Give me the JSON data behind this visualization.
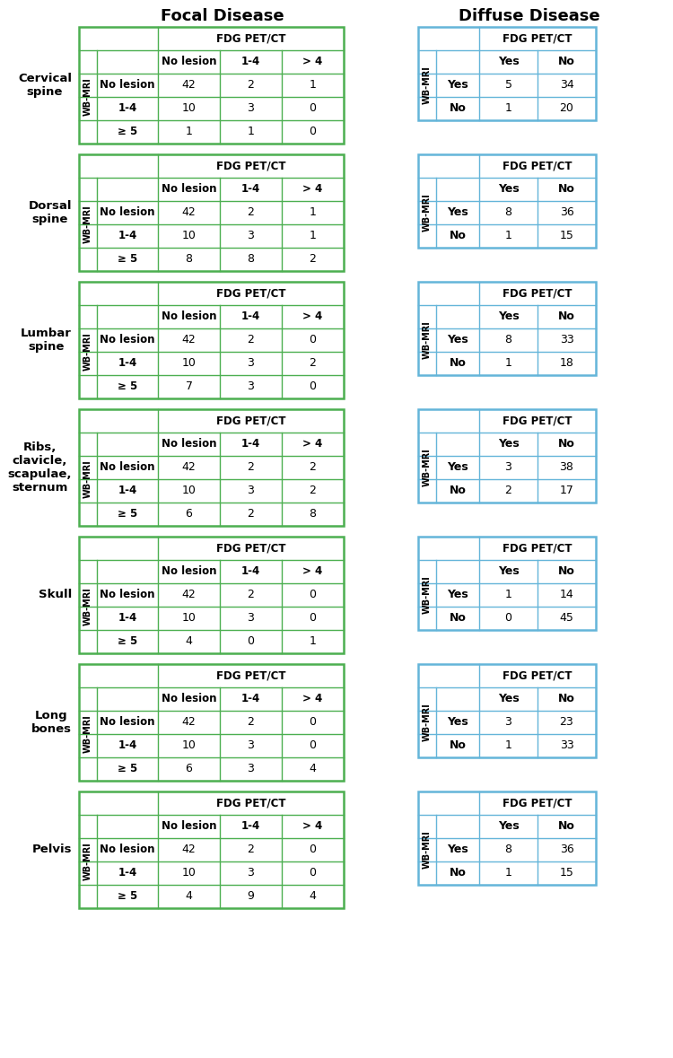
{
  "title_focal": "Focal Disease",
  "title_diffuse": "Diffuse Disease",
  "regions": [
    {
      "name": "Cervical\nspine",
      "focal": {
        "header": "FDG PET/CT",
        "col_labels": [
          "No lesion",
          "1-4",
          "> 4"
        ],
        "row_labels": [
          "No lesion",
          "1-4",
          "≥ 5"
        ],
        "data": [
          [
            42,
            2,
            1
          ],
          [
            10,
            3,
            0
          ],
          [
            1,
            1,
            0
          ]
        ]
      },
      "diffuse": {
        "header": "FDG PET/CT",
        "col_labels": [
          "Yes",
          "No"
        ],
        "row_labels": [
          "Yes",
          "No"
        ],
        "data": [
          [
            5,
            34
          ],
          [
            1,
            20
          ]
        ]
      }
    },
    {
      "name": "Dorsal\nspine",
      "focal": {
        "header": "FDG PET/CT",
        "col_labels": [
          "No lesion",
          "1-4",
          "> 4"
        ],
        "row_labels": [
          "No lesion",
          "1-4",
          "≥ 5"
        ],
        "data": [
          [
            42,
            2,
            1
          ],
          [
            10,
            3,
            1
          ],
          [
            8,
            8,
            2
          ]
        ]
      },
      "diffuse": {
        "header": "FDG PET/CT",
        "col_labels": [
          "Yes",
          "No"
        ],
        "row_labels": [
          "Yes",
          "No"
        ],
        "data": [
          [
            8,
            36
          ],
          [
            1,
            15
          ]
        ]
      }
    },
    {
      "name": "Lumbar\nspine",
      "focal": {
        "header": "FDG PET/CT",
        "col_labels": [
          "No lesion",
          "1-4",
          "> 4"
        ],
        "row_labels": [
          "No lesion",
          "1-4",
          "≥ 5"
        ],
        "data": [
          [
            42,
            2,
            0
          ],
          [
            10,
            3,
            2
          ],
          [
            7,
            3,
            0
          ]
        ]
      },
      "diffuse": {
        "header": "FDG PET/CT",
        "col_labels": [
          "Yes",
          "No"
        ],
        "row_labels": [
          "Yes",
          "No"
        ],
        "data": [
          [
            8,
            33
          ],
          [
            1,
            18
          ]
        ]
      }
    },
    {
      "name": "Ribs,\nclavicle,\nscapulae,\nsternum",
      "focal": {
        "header": "FDG PET/CT",
        "col_labels": [
          "No lesion",
          "1-4",
          "> 4"
        ],
        "row_labels": [
          "No lesion",
          "1-4",
          "≥ 5"
        ],
        "data": [
          [
            42,
            2,
            2
          ],
          [
            10,
            3,
            2
          ],
          [
            6,
            2,
            8
          ]
        ]
      },
      "diffuse": {
        "header": "FDG PET/CT",
        "col_labels": [
          "Yes",
          "No"
        ],
        "row_labels": [
          "Yes",
          "No"
        ],
        "data": [
          [
            3,
            38
          ],
          [
            2,
            17
          ]
        ]
      }
    },
    {
      "name": "Skull",
      "focal": {
        "header": "FDG PET/CT",
        "col_labels": [
          "No lesion",
          "1-4",
          "> 4"
        ],
        "row_labels": [
          "No lesion",
          "1-4",
          "≥ 5"
        ],
        "data": [
          [
            42,
            2,
            0
          ],
          [
            10,
            3,
            0
          ],
          [
            4,
            0,
            1
          ]
        ]
      },
      "diffuse": {
        "header": "FDG PET/CT",
        "col_labels": [
          "Yes",
          "No"
        ],
        "row_labels": [
          "Yes",
          "No"
        ],
        "data": [
          [
            1,
            14
          ],
          [
            0,
            45
          ]
        ]
      }
    },
    {
      "name": "Long\nbones",
      "focal": {
        "header": "FDG PET/CT",
        "col_labels": [
          "No lesion",
          "1-4",
          "> 4"
        ],
        "row_labels": [
          "No lesion",
          "1-4",
          "≥ 5"
        ],
        "data": [
          [
            42,
            2,
            0
          ],
          [
            10,
            3,
            0
          ],
          [
            6,
            3,
            4
          ]
        ]
      },
      "diffuse": {
        "header": "FDG PET/CT",
        "col_labels": [
          "Yes",
          "No"
        ],
        "row_labels": [
          "Yes",
          "No"
        ],
        "data": [
          [
            3,
            23
          ],
          [
            1,
            33
          ]
        ]
      }
    },
    {
      "name": "Pelvis",
      "focal": {
        "header": "FDG PET/CT",
        "col_labels": [
          "No lesion",
          "1-4",
          "> 4"
        ],
        "row_labels": [
          "No lesion",
          "1-4",
          "≥ 5"
        ],
        "data": [
          [
            42,
            2,
            0
          ],
          [
            10,
            3,
            0
          ],
          [
            4,
            9,
            4
          ]
        ]
      },
      "diffuse": {
        "header": "FDG PET/CT",
        "col_labels": [
          "Yes",
          "No"
        ],
        "row_labels": [
          "Yes",
          "No"
        ],
        "data": [
          [
            8,
            36
          ],
          [
            1,
            15
          ]
        ]
      }
    }
  ],
  "focal_border_color": "#4CAF50",
  "diffuse_border_color": "#64B5D9",
  "text_color": "#000000",
  "bg_color": "#ffffff"
}
